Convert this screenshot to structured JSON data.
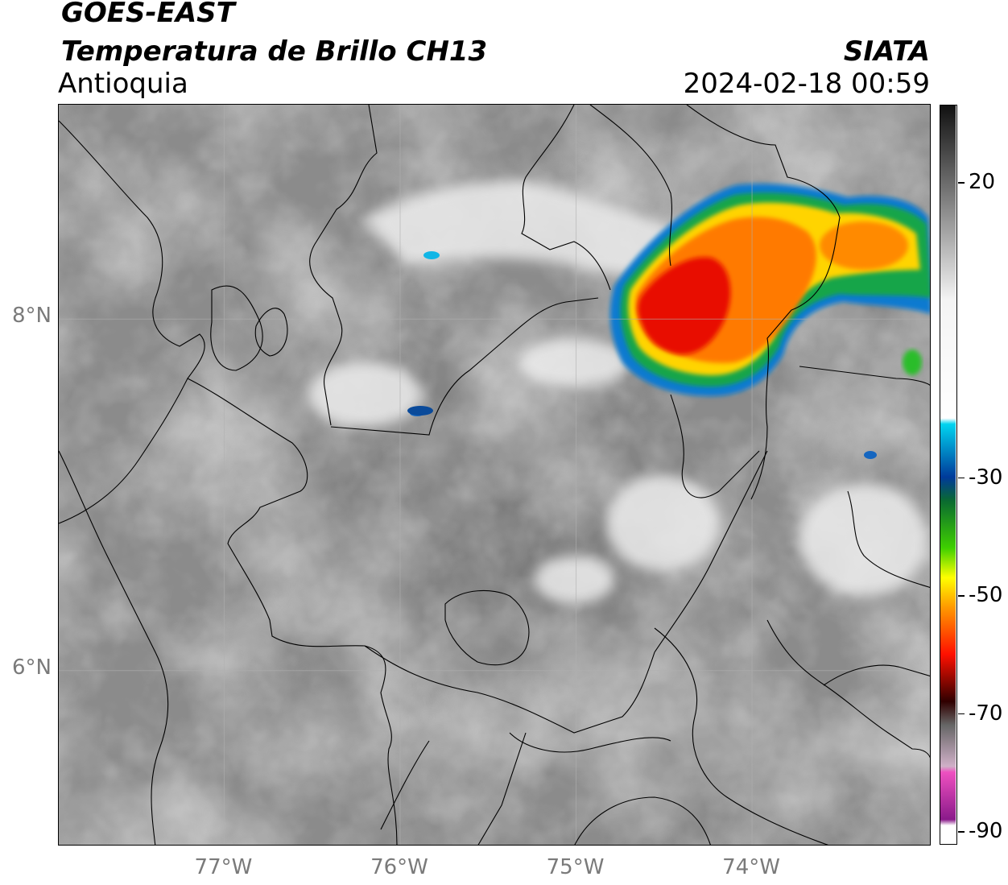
{
  "header": {
    "satellite": "GOES-EAST",
    "product": "Temperatura de Brillo CH13",
    "region": "Antioquia",
    "agency": "SIATA",
    "timestamp": "2024-02-18 00:59"
  },
  "axes": {
    "lat_ticks": [
      {
        "label": "8°N",
        "value": 8
      },
      {
        "label": "6°N",
        "value": 6
      }
    ],
    "lon_ticks": [
      {
        "label": "77°W",
        "value": -77
      },
      {
        "label": "76°W",
        "value": -76
      },
      {
        "label": "75°W",
        "value": -75
      },
      {
        "label": "74°W",
        "value": -74
      }
    ],
    "lon_range": [
      -77.94,
      -72.98
    ],
    "lat_range": [
      5.0,
      9.22
    ]
  },
  "colorbar": {
    "ticks": [
      {
        "label": "20",
        "value": 20
      },
      {
        "label": "-30",
        "value": -30
      },
      {
        "label": "-50",
        "value": -50
      },
      {
        "label": "-70",
        "value": -70
      },
      {
        "label": "-90",
        "value": -90
      }
    ],
    "range": [
      -92,
      33
    ],
    "stops": [
      {
        "value": 33,
        "color": "#111111"
      },
      {
        "value": 0,
        "color": "#f4f4f4"
      },
      {
        "value": -20,
        "color": "#ffffff"
      },
      {
        "value": -21,
        "color": "#00d4f0"
      },
      {
        "value": -30,
        "color": "#003a9a"
      },
      {
        "value": -34,
        "color": "#0a6a30"
      },
      {
        "value": -42,
        "color": "#3fd000"
      },
      {
        "value": -47,
        "color": "#ffff00"
      },
      {
        "value": -52,
        "color": "#ff9a00"
      },
      {
        "value": -60,
        "color": "#ff1000"
      },
      {
        "value": -68,
        "color": "#300000"
      },
      {
        "value": -72,
        "color": "#666666"
      },
      {
        "value": -79,
        "color": "#d0b0c8"
      },
      {
        "value": -80,
        "color": "#ee50c0"
      },
      {
        "value": -88,
        "color": "#8a1a8a"
      },
      {
        "value": -89,
        "color": "#ffffff"
      },
      {
        "value": -92,
        "color": "#ffffff"
      }
    ]
  },
  "storm": {
    "center_lon": -74.45,
    "center_lat": 7.95,
    "min_temp": -66
  }
}
